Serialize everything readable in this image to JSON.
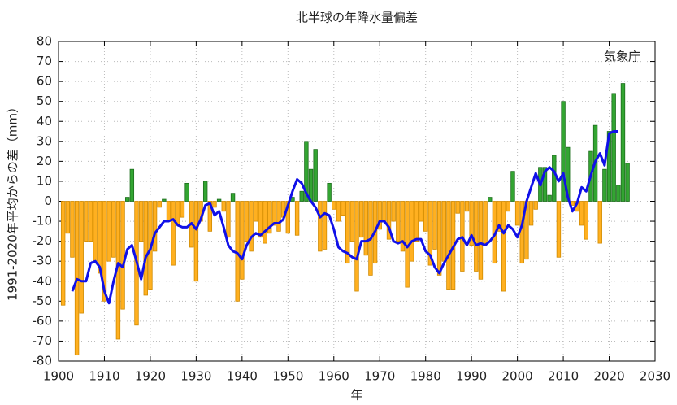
{
  "chart_data": {
    "type": "bar",
    "title": "北半球の年降水量偏差",
    "y_label": "1991-2020年平均からの差（mm）",
    "x_label": "年",
    "annotation": "気象庁",
    "x": [
      1901,
      1902,
      1903,
      1904,
      1905,
      1906,
      1907,
      1908,
      1909,
      1910,
      1911,
      1912,
      1913,
      1914,
      1915,
      1916,
      1917,
      1918,
      1919,
      1920,
      1921,
      1922,
      1923,
      1924,
      1925,
      1926,
      1927,
      1928,
      1929,
      1930,
      1931,
      1932,
      1933,
      1934,
      1935,
      1936,
      1937,
      1938,
      1939,
      1940,
      1941,
      1942,
      1943,
      1944,
      1945,
      1946,
      1947,
      1948,
      1949,
      1950,
      1951,
      1952,
      1953,
      1954,
      1955,
      1956,
      1957,
      1958,
      1959,
      1960,
      1961,
      1962,
      1963,
      1964,
      1965,
      1966,
      1967,
      1968,
      1969,
      1970,
      1971,
      1972,
      1973,
      1974,
      1975,
      1976,
      1977,
      1978,
      1979,
      1980,
      1981,
      1982,
      1983,
      1984,
      1985,
      1986,
      1987,
      1988,
      1989,
      1990,
      1991,
      1992,
      1993,
      1994,
      1995,
      1996,
      1997,
      1998,
      1999,
      2000,
      2001,
      2002,
      2003,
      2004,
      2005,
      2006,
      2007,
      2008,
      2009,
      2010,
      2011,
      2012,
      2013,
      2014,
      2015,
      2016,
      2017,
      2018,
      2019,
      2020,
      2021,
      2022,
      2023,
      2024
    ],
    "series": [
      {
        "type": "bar",
        "color": "#33a532",
        "negative_color": "#ffb020",
        "values": [
          -52,
          -16,
          -28,
          -77,
          -56,
          -20,
          -20,
          -30,
          -36,
          -50,
          -30,
          -28,
          -69,
          -54,
          2,
          16,
          -62,
          -20,
          -47,
          -44,
          -25,
          -3,
          1,
          -10,
          -32,
          -12,
          -8,
          9,
          -23,
          -40,
          -10,
          10,
          -15,
          -3,
          1,
          -5,
          -18,
          4,
          -50,
          -39,
          -20,
          -25,
          -10,
          -18,
          -21,
          -16,
          -12,
          -15,
          -8,
          -16,
          2,
          -17,
          5,
          30,
          16,
          26,
          -25,
          -24,
          9,
          -4,
          -10,
          -7,
          -31,
          -20,
          -45,
          -18,
          -27,
          -37,
          -31,
          -14,
          -10,
          -19,
          -10,
          -20,
          -25,
          -43,
          -30,
          -20,
          -10,
          -15,
          -32,
          -24,
          -37,
          -30,
          -44,
          -44,
          -6,
          -35,
          -5,
          -22,
          -35,
          -39,
          -21,
          2,
          -31,
          -15,
          -45,
          -5,
          15,
          -12,
          -31,
          -29,
          -12,
          -4,
          17,
          17,
          3,
          23,
          -28,
          50,
          27,
          -2,
          -5,
          -12,
          -19,
          25,
          38,
          -21,
          16,
          35,
          54,
          8,
          59,
          19
        ]
      },
      {
        "type": "line",
        "color": "#1010e8",
        "values": [
          null,
          null,
          -45,
          -39,
          -40,
          -40,
          -31,
          -30,
          -33,
          -45,
          -51,
          -40,
          -31,
          -33,
          -24,
          -22,
          -30,
          -39,
          -28,
          -24,
          -16,
          -13,
          -10,
          -10,
          -9,
          -12,
          -13,
          -13,
          -11,
          -14,
          -9,
          -2,
          -1,
          -7,
          -5,
          -13,
          -22,
          -25,
          -26,
          -29,
          -22,
          -18,
          -16,
          -17,
          -15,
          -13,
          -11,
          -11,
          -9,
          -2,
          5,
          11,
          9,
          4,
          0,
          -3,
          -8,
          -6,
          -7,
          -14,
          -23,
          -25,
          -26,
          -28,
          -29,
          -20,
          -20,
          -19,
          -15,
          -10,
          -10,
          -13,
          -20,
          -21,
          -20,
          -23,
          -20,
          -19,
          -19,
          -25,
          -27,
          -33,
          -36,
          -31,
          -27,
          -23,
          -19,
          -18,
          -22,
          -17,
          -22,
          -21,
          -22,
          -20,
          -17,
          -12,
          -16,
          -12,
          -14,
          -18,
          -12,
          0,
          7,
          14,
          8,
          15,
          17,
          15,
          10,
          14,
          2,
          -5,
          -1,
          7,
          5,
          13,
          20,
          24,
          18,
          34,
          35,
          35,
          null,
          null
        ]
      }
    ],
    "xlim": [
      1900,
      2030
    ],
    "xticks": [
      1900,
      1910,
      1920,
      1930,
      1940,
      1950,
      1960,
      1970,
      1980,
      1990,
      2000,
      2010,
      2020,
      2030
    ],
    "ylim": [
      -80,
      80
    ],
    "yticks": [
      -80,
      -70,
      -60,
      -50,
      -40,
      -30,
      -20,
      -10,
      0,
      10,
      20,
      30,
      40,
      50,
      60,
      70,
      80
    ],
    "grid": true
  }
}
